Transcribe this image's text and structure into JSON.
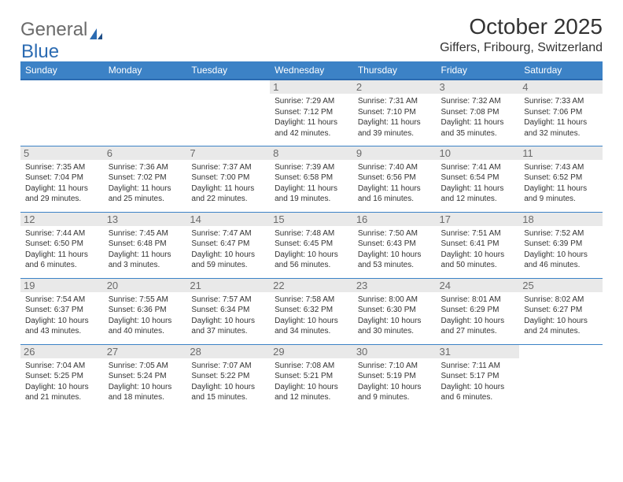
{
  "brand": {
    "word1": "General",
    "word2": "Blue",
    "icon_color": "#2b6bb2"
  },
  "title": "October 2025",
  "subtitle": "Giffers, Fribourg, Switzerland",
  "colors": {
    "header_bg": "#3c82c6",
    "header_border": "#2b6bb2",
    "daynum_bg": "#e9e9e9",
    "row_border": "#3c82c6"
  },
  "weekdays": [
    "Sunday",
    "Monday",
    "Tuesday",
    "Wednesday",
    "Thursday",
    "Friday",
    "Saturday"
  ],
  "weeks": [
    [
      {
        "n": "",
        "sr": "",
        "ss": "",
        "dl": ""
      },
      {
        "n": "",
        "sr": "",
        "ss": "",
        "dl": ""
      },
      {
        "n": "",
        "sr": "",
        "ss": "",
        "dl": ""
      },
      {
        "n": "1",
        "sr": "Sunrise: 7:29 AM",
        "ss": "Sunset: 7:12 PM",
        "dl": "Daylight: 11 hours and 42 minutes."
      },
      {
        "n": "2",
        "sr": "Sunrise: 7:31 AM",
        "ss": "Sunset: 7:10 PM",
        "dl": "Daylight: 11 hours and 39 minutes."
      },
      {
        "n": "3",
        "sr": "Sunrise: 7:32 AM",
        "ss": "Sunset: 7:08 PM",
        "dl": "Daylight: 11 hours and 35 minutes."
      },
      {
        "n": "4",
        "sr": "Sunrise: 7:33 AM",
        "ss": "Sunset: 7:06 PM",
        "dl": "Daylight: 11 hours and 32 minutes."
      }
    ],
    [
      {
        "n": "5",
        "sr": "Sunrise: 7:35 AM",
        "ss": "Sunset: 7:04 PM",
        "dl": "Daylight: 11 hours and 29 minutes."
      },
      {
        "n": "6",
        "sr": "Sunrise: 7:36 AM",
        "ss": "Sunset: 7:02 PM",
        "dl": "Daylight: 11 hours and 25 minutes."
      },
      {
        "n": "7",
        "sr": "Sunrise: 7:37 AM",
        "ss": "Sunset: 7:00 PM",
        "dl": "Daylight: 11 hours and 22 minutes."
      },
      {
        "n": "8",
        "sr": "Sunrise: 7:39 AM",
        "ss": "Sunset: 6:58 PM",
        "dl": "Daylight: 11 hours and 19 minutes."
      },
      {
        "n": "9",
        "sr": "Sunrise: 7:40 AM",
        "ss": "Sunset: 6:56 PM",
        "dl": "Daylight: 11 hours and 16 minutes."
      },
      {
        "n": "10",
        "sr": "Sunrise: 7:41 AM",
        "ss": "Sunset: 6:54 PM",
        "dl": "Daylight: 11 hours and 12 minutes."
      },
      {
        "n": "11",
        "sr": "Sunrise: 7:43 AM",
        "ss": "Sunset: 6:52 PM",
        "dl": "Daylight: 11 hours and 9 minutes."
      }
    ],
    [
      {
        "n": "12",
        "sr": "Sunrise: 7:44 AM",
        "ss": "Sunset: 6:50 PM",
        "dl": "Daylight: 11 hours and 6 minutes."
      },
      {
        "n": "13",
        "sr": "Sunrise: 7:45 AM",
        "ss": "Sunset: 6:48 PM",
        "dl": "Daylight: 11 hours and 3 minutes."
      },
      {
        "n": "14",
        "sr": "Sunrise: 7:47 AM",
        "ss": "Sunset: 6:47 PM",
        "dl": "Daylight: 10 hours and 59 minutes."
      },
      {
        "n": "15",
        "sr": "Sunrise: 7:48 AM",
        "ss": "Sunset: 6:45 PM",
        "dl": "Daylight: 10 hours and 56 minutes."
      },
      {
        "n": "16",
        "sr": "Sunrise: 7:50 AM",
        "ss": "Sunset: 6:43 PM",
        "dl": "Daylight: 10 hours and 53 minutes."
      },
      {
        "n": "17",
        "sr": "Sunrise: 7:51 AM",
        "ss": "Sunset: 6:41 PM",
        "dl": "Daylight: 10 hours and 50 minutes."
      },
      {
        "n": "18",
        "sr": "Sunrise: 7:52 AM",
        "ss": "Sunset: 6:39 PM",
        "dl": "Daylight: 10 hours and 46 minutes."
      }
    ],
    [
      {
        "n": "19",
        "sr": "Sunrise: 7:54 AM",
        "ss": "Sunset: 6:37 PM",
        "dl": "Daylight: 10 hours and 43 minutes."
      },
      {
        "n": "20",
        "sr": "Sunrise: 7:55 AM",
        "ss": "Sunset: 6:36 PM",
        "dl": "Daylight: 10 hours and 40 minutes."
      },
      {
        "n": "21",
        "sr": "Sunrise: 7:57 AM",
        "ss": "Sunset: 6:34 PM",
        "dl": "Daylight: 10 hours and 37 minutes."
      },
      {
        "n": "22",
        "sr": "Sunrise: 7:58 AM",
        "ss": "Sunset: 6:32 PM",
        "dl": "Daylight: 10 hours and 34 minutes."
      },
      {
        "n": "23",
        "sr": "Sunrise: 8:00 AM",
        "ss": "Sunset: 6:30 PM",
        "dl": "Daylight: 10 hours and 30 minutes."
      },
      {
        "n": "24",
        "sr": "Sunrise: 8:01 AM",
        "ss": "Sunset: 6:29 PM",
        "dl": "Daylight: 10 hours and 27 minutes."
      },
      {
        "n": "25",
        "sr": "Sunrise: 8:02 AM",
        "ss": "Sunset: 6:27 PM",
        "dl": "Daylight: 10 hours and 24 minutes."
      }
    ],
    [
      {
        "n": "26",
        "sr": "Sunrise: 7:04 AM",
        "ss": "Sunset: 5:25 PM",
        "dl": "Daylight: 10 hours and 21 minutes."
      },
      {
        "n": "27",
        "sr": "Sunrise: 7:05 AM",
        "ss": "Sunset: 5:24 PM",
        "dl": "Daylight: 10 hours and 18 minutes."
      },
      {
        "n": "28",
        "sr": "Sunrise: 7:07 AM",
        "ss": "Sunset: 5:22 PM",
        "dl": "Daylight: 10 hours and 15 minutes."
      },
      {
        "n": "29",
        "sr": "Sunrise: 7:08 AM",
        "ss": "Sunset: 5:21 PM",
        "dl": "Daylight: 10 hours and 12 minutes."
      },
      {
        "n": "30",
        "sr": "Sunrise: 7:10 AM",
        "ss": "Sunset: 5:19 PM",
        "dl": "Daylight: 10 hours and 9 minutes."
      },
      {
        "n": "31",
        "sr": "Sunrise: 7:11 AM",
        "ss": "Sunset: 5:17 PM",
        "dl": "Daylight: 10 hours and 6 minutes."
      },
      {
        "n": "",
        "sr": "",
        "ss": "",
        "dl": ""
      }
    ]
  ]
}
